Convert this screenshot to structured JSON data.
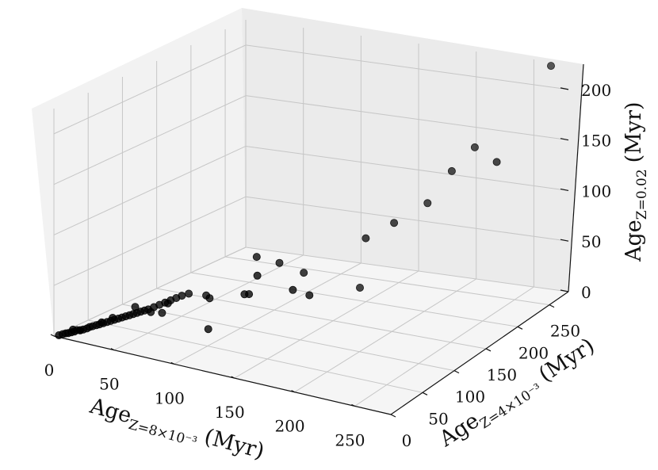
{
  "chart_data": {
    "type": "scatter",
    "title": "",
    "xlabel": {
      "main": "Age",
      "sub": "Z=8×10⁻³",
      "unit": "(Myr)"
    },
    "ylabel": {
      "main": "Age",
      "sub": "Z=4×10⁻³",
      "unit": "(Myr)"
    },
    "zlabel": {
      "main": "Age",
      "sub": "Z=0.02",
      "unit": "(Myr)"
    },
    "xlim": [
      0,
      280
    ],
    "ylim": [
      0,
      280
    ],
    "zlim": [
      0,
      225
    ],
    "xticks": [
      "0",
      "50",
      "100",
      "150",
      "200",
      "250"
    ],
    "yticks": [
      "0",
      "50",
      "100",
      "150",
      "200",
      "250"
    ],
    "zticks": [
      "0",
      "50",
      "100",
      "150",
      "200"
    ],
    "grid": true,
    "marker_color": "#000000",
    "points": [
      [
        3,
        2,
        1
      ],
      [
        5,
        4,
        2
      ],
      [
        7,
        5,
        3
      ],
      [
        8,
        7,
        3
      ],
      [
        10,
        8,
        4
      ],
      [
        12,
        9,
        5
      ],
      [
        13,
        11,
        6
      ],
      [
        15,
        12,
        6
      ],
      [
        17,
        13,
        7
      ],
      [
        19,
        15,
        8
      ],
      [
        20,
        17,
        9
      ],
      [
        22,
        18,
        10
      ],
      [
        24,
        20,
        11
      ],
      [
        26,
        21,
        12
      ],
      [
        28,
        23,
        13
      ],
      [
        30,
        25,
        14
      ],
      [
        32,
        27,
        15
      ],
      [
        34,
        29,
        16
      ],
      [
        36,
        31,
        17
      ],
      [
        38,
        33,
        18
      ],
      [
        40,
        35,
        19
      ],
      [
        42,
        37,
        20
      ],
      [
        44,
        39,
        21
      ],
      [
        46,
        41,
        22
      ],
      [
        48,
        43,
        23
      ],
      [
        50,
        45,
        24
      ],
      [
        52,
        47,
        25
      ],
      [
        55,
        50,
        27
      ],
      [
        58,
        53,
        29
      ],
      [
        61,
        56,
        31
      ],
      [
        64,
        59,
        33
      ],
      [
        67,
        62,
        35
      ],
      [
        70,
        65,
        37
      ],
      [
        9,
        12,
        5
      ],
      [
        16,
        10,
        7
      ],
      [
        25,
        26,
        12
      ],
      [
        33,
        28,
        18
      ],
      [
        45,
        40,
        28
      ],
      [
        53,
        49,
        22
      ],
      [
        60,
        62,
        28
      ],
      [
        63,
        48,
        24
      ],
      [
        73,
        70,
        38
      ],
      [
        82,
        80,
        35
      ],
      [
        86,
        78,
        34
      ],
      [
        95,
        60,
        12
      ],
      [
        112,
        84,
        42
      ],
      [
        118,
        80,
        45
      ],
      [
        125,
        80,
        65
      ],
      [
        146,
        96,
        50
      ],
      [
        160,
        96,
        48
      ],
      [
        128,
        108,
        68
      ],
      [
        115,
        97,
        75
      ],
      [
        143,
        118,
        58
      ],
      [
        170,
        155,
        35
      ],
      [
        175,
        155,
        85
      ],
      [
        188,
        175,
        95
      ],
      [
        200,
        205,
        105
      ],
      [
        218,
        210,
        138
      ],
      [
        230,
        224,
        158
      ],
      [
        250,
        222,
        148
      ],
      [
        266,
        278,
        222
      ]
    ]
  }
}
